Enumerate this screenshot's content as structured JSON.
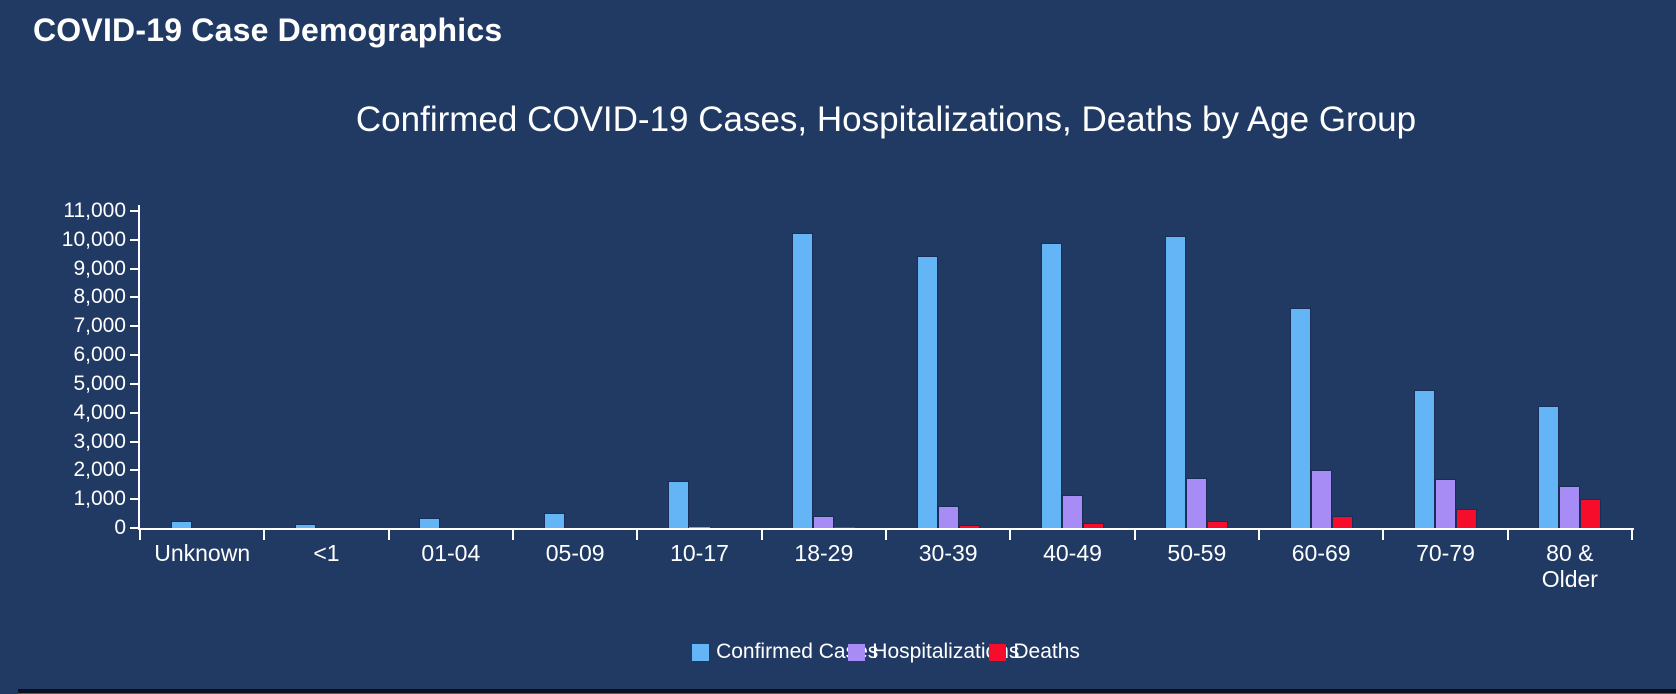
{
  "page": {
    "title": "COVID-19 Case Demographics",
    "background_color": "#213A64"
  },
  "chart_data": {
    "type": "bar",
    "title": "Confirmed COVID-19 Cases, Hospitalizations, Deaths by Age Group",
    "categories": [
      "Unknown",
      "<1",
      "01-04",
      "05-09",
      "10-17",
      "18-29",
      "30-39",
      "40-49",
      "50-59",
      "60-69",
      "70-79",
      "80 & Older"
    ],
    "categories_display": [
      "Unknown",
      "<1",
      "01-04",
      "05-09",
      "10-17",
      "18-29",
      "30-39",
      "40-49",
      "50-59",
      "60-69",
      "70-79",
      "80 &\nOlder"
    ],
    "series": [
      {
        "name": "Confirmed Cases",
        "color": "#64B5F6",
        "values": [
          240,
          130,
          360,
          510,
          1640,
          10230,
          9450,
          9890,
          10150,
          7640,
          4800,
          4250
        ]
      },
      {
        "name": "Hospitalizations",
        "color": "#A78CF5",
        "values": [
          0,
          0,
          0,
          0,
          50,
          420,
          770,
          1140,
          1750,
          2000,
          1690,
          1450
        ]
      },
      {
        "name": "Deaths",
        "color": "#F50D2B",
        "values": [
          0,
          0,
          0,
          0,
          0,
          20,
          110,
          180,
          240,
          420,
          670,
          1000
        ]
      }
    ],
    "xlabel": "",
    "ylabel": "",
    "ylim": [
      0,
      11000
    ],
    "y_tick_step": 1000,
    "y_tick_labels": [
      "0",
      "1,000",
      "2,000",
      "3,000",
      "4,000",
      "5,000",
      "6,000",
      "7,000",
      "8,000",
      "9,000",
      "10,000",
      "11,000"
    ],
    "grid": false,
    "axis_color": "#FFFFFF",
    "legend_position": "bottom"
  }
}
